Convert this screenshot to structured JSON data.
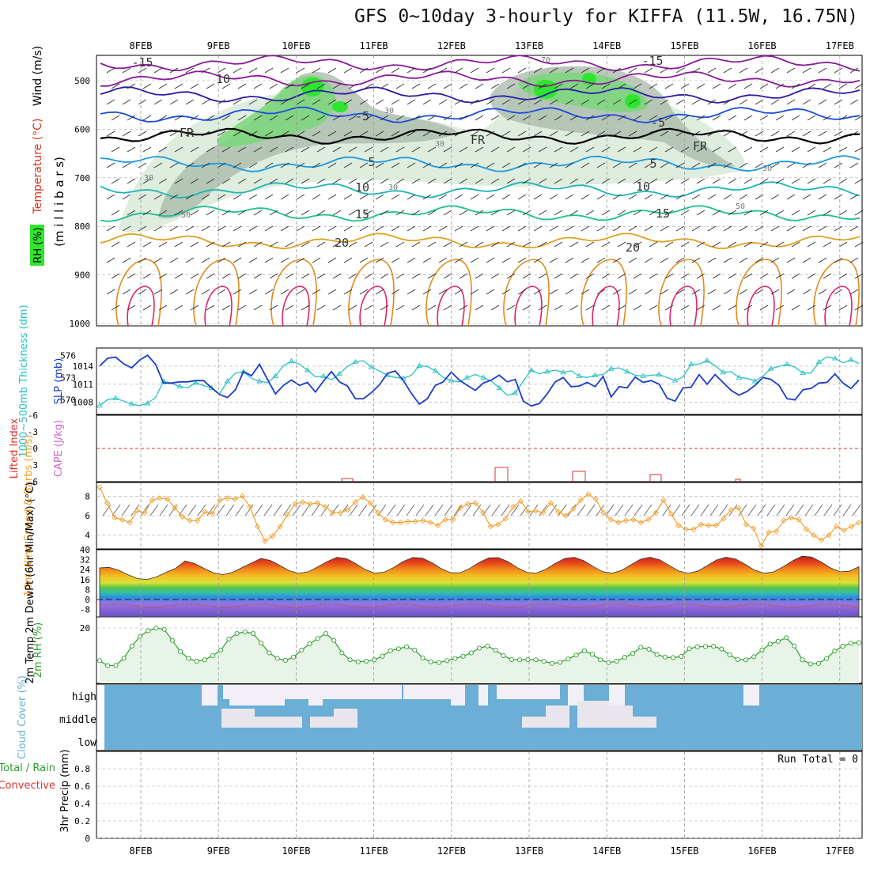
{
  "title": "GFS 0~10day 3-hourly for KIFFA (11.5W, 16.75N)",
  "dates": [
    "8FEB",
    "9FEB",
    "10FEB",
    "11FEB",
    "12FEB",
    "13FEB",
    "14FEB",
    "15FEB",
    "16FEB",
    "17FEB"
  ],
  "colors": {
    "rh_green": "#2ee62e",
    "rh_gray": "#7a8a7a",
    "temp_warm": "#e08a1a",
    "temp_hot": "#e0206a",
    "slp": "#1a3ccc",
    "thickness": "#27c2c2",
    "wind10m": "#f0a030",
    "rh2m": "#2e9e2e",
    "cloud_blue": "#6baed6",
    "cloud_white": "#f2f0f6",
    "precip_green": "#2e9e2e",
    "precip_red": "#e03030",
    "li_red": "#e03030",
    "cape_violet": "#cc66cc"
  },
  "panels": {
    "upper": {
      "ylabels": {
        "wind": "Wind (m/s)",
        "temperature": "Temperature (°C)",
        "rh": "RH (%)",
        "pressure": "(m i l l i b a r s)"
      },
      "yticks": [
        "500",
        "600",
        "700",
        "800",
        "900",
        "1000"
      ],
      "isotherm_labels": [
        "-15",
        "-15",
        "10",
        "-5",
        "-5",
        "FR",
        "FR",
        "FR",
        "5",
        "5",
        "10",
        "10",
        "15",
        "15",
        "20",
        "20"
      ],
      "rh_labels": [
        "30",
        "30",
        "30",
        "30",
        "30",
        "50",
        "50",
        "70"
      ]
    },
    "thickness": {
      "ylabel_left": "1000~500mb Thickness (dm)",
      "ylabel_right": "SLP (mb)",
      "yticks_left": [
        "576",
        "573",
        "570"
      ],
      "yticks_right": [
        "1014",
        "1011",
        "1008"
      ],
      "chart_data": {
        "type": "line",
        "series": [
          {
            "name": "1000~500mb Thickness (dm)",
            "values": [
              569.2,
              570.0,
              570.2,
              569.8,
              569.4,
              569.2,
              569.5,
              570.3,
              572.5,
              572.2,
              571.8,
              571.6,
              572.3,
              571.9,
              571.6,
              570.8,
              572.5,
              573.6,
              573.8,
              572.9,
              572.5,
              572.3,
              573.2,
              574.6,
              575.2,
              574.8,
              574.0,
              573.1,
              573.2,
              572.7,
              573.5,
              574.5,
              575.1,
              575.3,
              574.4,
              573.9,
              573.3,
              573.0,
              572.9,
              573.3,
              574.6,
              574.5,
              573.9,
              573.0,
              572.6,
              572.4,
              573.0,
              573.4,
              573.0,
              572.5,
              571.6,
              570.6,
              570.9,
              572.5,
              574.0,
              573.5,
              573.8,
              574.0,
              573.7,
              573.9,
              573.2,
              573.0,
              573.3,
              573.4,
              574.2,
              574.3,
              573.8,
              573.3,
              573.2,
              573.3,
              573.4,
              573.0,
              572.6,
              573.1,
              574.8,
              574.8,
              575.3,
              574.6,
              573.7,
              573.8,
              573.0,
              572.9,
              572.5,
              573.2,
              574.2,
              574.5,
              574.8,
              574.4,
              573.6,
              573.6,
              575.1,
              575.8,
              575.6,
              575.0,
              575.4,
              574.9
            ]
          },
          {
            "name": "SLP (mb)",
            "values": [
              1014.0,
              1015.3,
              1015.5,
              1014.4,
              1013.7,
              1015.0,
              1015.8,
              1014.3,
              1011.2,
              1011.2,
              1011.4,
              1011.4,
              1011.6,
              1011.6,
              1010.4,
              1009.3,
              1008.8,
              1010.1,
              1013.1,
              1012.4,
              1014.3,
              1011.8,
              1009.4,
              1010.8,
              1011.7,
              1010.8,
              1011.3,
              1009.7,
              1011.5,
              1013.1,
              1011.4,
              1010.7,
              1008.6,
              1008.6,
              1009.6,
              1010.9,
              1012.8,
              1013.2,
              1011.6,
              1009.5,
              1007.7,
              1008.6,
              1010.8,
              1011.4,
              1013.0,
              1011.7,
              1010.8,
              1010.0,
              1011.2,
              1011.7,
              1012.5,
              1011.4,
              1011.8,
              1008.2,
              1007.4,
              1007.8,
              1009.4,
              1011.4,
              1012.1,
              1010.6,
              1010.7,
              1011.3,
              1010.6,
              1012.3,
              1008.9,
              1010.6,
              1010.4,
              1012.2,
              1011.3,
              1011.6,
              1011.0,
              1008.7,
              1008.2,
              1010.4,
              1010.5,
              1012.6,
              1011.0,
              1012.6,
              1011.3,
              1010.0,
              1009.2,
              1009.8,
              1010.8,
              1012.1,
              1011.8,
              1010.8,
              1008.6,
              1008.4,
              1010.1,
              1010.3,
              1011.2,
              1011.3,
              1012.7,
              1011.2,
              1010.3,
              1011.7
            ]
          }
        ],
        "ylim_left": [
          568,
          577
        ],
        "ylim_right": [
          1006,
          1017
        ]
      }
    },
    "stability": {
      "ylabel_left": "Lifted Index",
      "ylabel_right": "CAPE (J/kg)",
      "yticks": [
        "6",
        "3",
        "0",
        "-3",
        "-6"
      ]
    },
    "wind10m": {
      "ylabel": "10m Wind Speed & Barbs (m/s)",
      "yticks": [
        "8",
        "6",
        "4"
      ],
      "chart_data": {
        "type": "line",
        "ylim": [
          2.6,
          9.4
        ],
        "values": [
          8.9,
          7.3,
          5.8,
          5.6,
          5.3,
          6.5,
          6.3,
          7.6,
          7.8,
          7.7,
          6.8,
          5.9,
          5.5,
          5.5,
          6.4,
          6.2,
          7.6,
          7.8,
          7.7,
          8.0,
          6.9,
          4.9,
          3.4,
          3.9,
          4.9,
          6.1,
          7.2,
          7.4,
          7.2,
          7.3,
          6.9,
          6.3,
          6.3,
          6.6,
          7.4,
          7.9,
          7.3,
          6.3,
          5.6,
          5.3,
          5.3,
          5.4,
          5.4,
          5.5,
          5.3,
          5.0,
          5.6,
          5.6,
          6.8,
          7.2,
          7.3,
          6.3,
          4.9,
          5.1,
          5.7,
          6.9,
          7.5,
          6.4,
          6.5,
          6.3,
          7.3,
          6.4,
          6.0,
          6.7,
          7.6,
          8.2,
          7.7,
          6.3,
          5.6,
          5.3,
          5.5,
          5.6,
          5.3,
          5.6,
          6.3,
          7.6,
          6.2,
          5.0,
          4.6,
          4.6,
          5.1,
          5.0,
          5.0,
          5.7,
          6.6,
          6.8,
          5.1,
          4.7,
          2.9,
          4.3,
          4.4,
          5.5,
          5.8,
          5.6,
          4.6,
          4.0,
          3.5,
          4.0,
          4.9,
          4.5,
          4.9,
          5.3
        ]
      }
    },
    "temp2m": {
      "ylabel": "2m Temp 2m DewPt (6hr Min/Max) (°C)",
      "yticks": [
        "40",
        "32",
        "24",
        "16",
        "8",
        "0",
        "-8"
      ],
      "chart_data": {
        "type": "area",
        "ylim": [
          -14,
          40
        ],
        "temp_peaks": [
          26,
          31,
          33,
          34,
          34,
          34,
          34,
          34,
          34,
          35
        ],
        "temp_lows": [
          16,
          20,
          21,
          21,
          21,
          21,
          21,
          21,
          21,
          22
        ],
        "dewpoint_approx": -5
      }
    },
    "rh2m": {
      "ylabel": "2m RH (%)",
      "yticks": [
        "20"
      ],
      "chart_data": {
        "type": "line",
        "ylim": [
          0,
          24
        ],
        "values": [
          8.2,
          6.4,
          6.5,
          9.1,
          13.5,
          17.0,
          19.0,
          20.0,
          19.5,
          15.5,
          11.5,
          9.0,
          8.0,
          8.5,
          10.0,
          12.0,
          16.0,
          18.0,
          18.6,
          18.0,
          14.5,
          11.0,
          9.0,
          8.3,
          9.5,
          12.0,
          14.3,
          16.2,
          18.0,
          15.5,
          11.0,
          8.5,
          7.8,
          8.0,
          8.5,
          9.8,
          11.8,
          12.5,
          13.2,
          12.0,
          9.2,
          7.8,
          7.5,
          8.2,
          9.0,
          9.8,
          11.0,
          12.7,
          13.5,
          12.0,
          10.0,
          8.6,
          8.5,
          8.6,
          8.5,
          8.0,
          7.2,
          7.6,
          8.8,
          10.2,
          11.8,
          10.5,
          8.5,
          7.5,
          8.0,
          9.4,
          10.8,
          13.0,
          12.3,
          10.4,
          9.5,
          9.3,
          9.7,
          12.5,
          13.2,
          13.3,
          13.4,
          12.4,
          10.3,
          8.6,
          8.5,
          9.6,
          12.0,
          14.2,
          15.2,
          16.5,
          13.5,
          8.5,
          7.0,
          7.2,
          9.0,
          11.7,
          13.4,
          14.5,
          14.7
        ]
      }
    },
    "cloud": {
      "ylabel": "Cloud Cover (%)",
      "levels": [
        "high",
        "middle",
        "low"
      ]
    },
    "precip": {
      "ylabel_left": "Total / Rain",
      "ylabel_left2": "Convective",
      "ylabel": "3hr Precip (mm)",
      "yticks": [
        "0.8",
        "0.6",
        "0.4",
        "0.2",
        "0"
      ],
      "run_total": "Run Total = 0",
      "chart_data": {
        "type": "bar",
        "values": [],
        "ylim": [
          0,
          1
        ]
      }
    }
  }
}
